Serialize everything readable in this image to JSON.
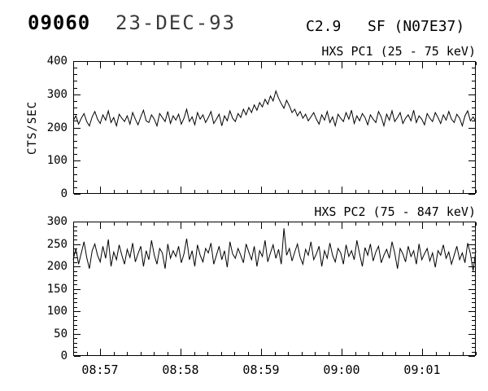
{
  "header": {
    "event_id": "09060",
    "date": "23-DEC-93",
    "goes_class": "C2.9",
    "flare_class_location": "SF (N07E37)"
  },
  "chart_data": [
    {
      "type": "line",
      "title": "HXS PC1 (25 - 75 keV)",
      "ylabel": "CTS/SEC",
      "ylim": [
        0,
        400
      ],
      "y_major": 100,
      "y_minor": 20,
      "x_start": "08:56:40",
      "x_end": "09:01:40",
      "x_minor_seconds": 10,
      "x_ticks": [
        "08:57",
        "08:58",
        "08:59",
        "09:00",
        "09:01"
      ],
      "values": [
        220,
        235,
        210,
        228,
        242,
        218,
        205,
        232,
        248,
        225,
        212,
        238,
        222,
        250,
        215,
        230,
        205,
        240,
        228,
        218,
        235,
        210,
        245,
        225,
        208,
        232,
        252,
        220,
        215,
        238,
        225,
        205,
        242,
        230,
        218,
        248,
        212,
        235,
        222,
        240,
        210,
        228,
        255,
        218,
        232,
        208,
        245,
        225,
        238,
        215,
        230,
        248,
        212,
        225,
        240,
        205,
        235,
        220,
        250,
        228,
        218,
        242,
        230,
        255,
        238,
        260,
        245,
        268,
        252,
        275,
        262,
        285,
        270,
        295,
        280,
        310,
        288,
        272,
        258,
        282,
        265,
        245,
        255,
        235,
        248,
        228,
        240,
        220,
        232,
        245,
        225,
        210,
        238,
        222,
        248,
        215,
        232,
        205,
        240,
        228,
        218,
        245,
        225,
        252,
        212,
        235,
        220,
        242,
        230,
        208,
        238,
        225,
        215,
        248,
        232,
        205,
        240,
        222,
        250,
        218,
        230,
        245,
        212,
        228,
        238,
        220,
        252,
        215,
        235,
        225,
        208,
        242,
        228,
        218,
        245,
        230,
        212,
        238,
        222,
        248,
        225,
        215,
        240,
        228,
        205,
        235,
        250,
        220,
        232,
        218
      ]
    },
    {
      "type": "line",
      "title": "HXS PC2 (75 - 847 keV)",
      "ylabel": "",
      "ylim": [
        0,
        300
      ],
      "y_major": 50,
      "y_minor": 10,
      "x_start": "08:56:40",
      "x_end": "09:01:40",
      "x_minor_seconds": 10,
      "x_ticks": [
        "08:57",
        "08:58",
        "08:59",
        "09:00",
        "09:01"
      ],
      "values": [
        215,
        240,
        205,
        230,
        255,
        220,
        195,
        235,
        250,
        225,
        210,
        245,
        218,
        260,
        200,
        232,
        215,
        248,
        225,
        205,
        238,
        220,
        252,
        210,
        228,
        245,
        200,
        235,
        215,
        258,
        225,
        205,
        240,
        230,
        195,
        250,
        218,
        235,
        222,
        245,
        208,
        228,
        262,
        215,
        235,
        200,
        248,
        225,
        210,
        240,
        230,
        252,
        205,
        225,
        245,
        215,
        235,
        198,
        255,
        228,
        218,
        240,
        225,
        208,
        250,
        232,
        215,
        245,
        200,
        235,
        222,
        258,
        210,
        230,
        248,
        218,
        238,
        205,
        285,
        225,
        240,
        212,
        232,
        250,
        220,
        205,
        238,
        225,
        255,
        215,
        228,
        245,
        200,
        235,
        218,
        252,
        225,
        210,
        240,
        230,
        205,
        248,
        222,
        235,
        215,
        258,
        228,
        200,
        242,
        225,
        250,
        212,
        232,
        245,
        208,
        225,
        238,
        218,
        255,
        230,
        195,
        240,
        228,
        210,
        245,
        222,
        235,
        205,
        250,
        215,
        228,
        240,
        212,
        230,
        198,
        235,
        225,
        248,
        218,
        232,
        205,
        225,
        245,
        215,
        230,
        208,
        252,
        228,
        190,
        235
      ]
    }
  ]
}
